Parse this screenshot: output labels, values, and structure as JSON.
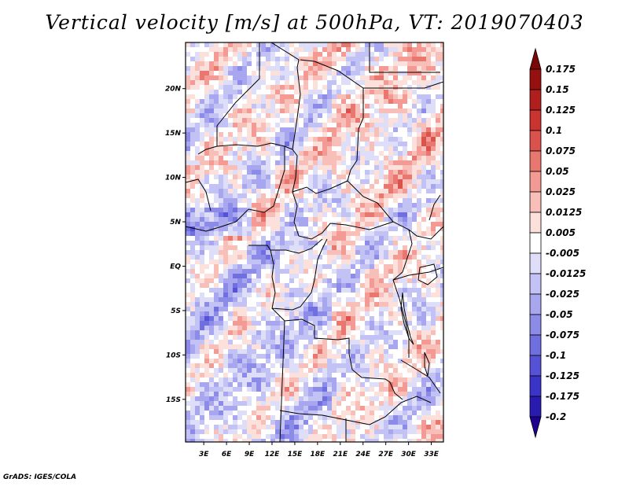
{
  "title": "Vertical velocity [m/s] at 500hPa, VT: 2019070403",
  "footer": "GrADS: IGES/COLA",
  "colors": {
    "levels": [
      "#20008f",
      "#2a1bb0",
      "#3a35c8",
      "#5552d6",
      "#706fe0",
      "#8c8be8",
      "#a7a6ef",
      "#c3c2f5",
      "#dedef9",
      "#ffffff",
      "#fce0dc",
      "#f8bfb9",
      "#f29a93",
      "#e8776f",
      "#da524c",
      "#c93330",
      "#b01e1e",
      "#961010",
      "#7a0808"
    ]
  },
  "chart_data": {
    "type": "heatmap",
    "title": "Vertical velocity [m/s] at 500hPa, VT: 2019070403",
    "variable": "Vertical velocity",
    "units": "m/s",
    "level": "500hPa",
    "valid_time": "2019070403",
    "x_axis": {
      "ticks": [
        "3E",
        "6E",
        "9E",
        "12E",
        "15E",
        "18E",
        "21E",
        "24E",
        "27E",
        "30E",
        "33E"
      ],
      "values": [
        3,
        6,
        9,
        12,
        15,
        18,
        21,
        24,
        27,
        30,
        33
      ],
      "range": [
        0.6,
        34.6
      ]
    },
    "y_axis": {
      "ticks": [
        "20N",
        "15N",
        "10N",
        "5N",
        "EQ",
        "5S",
        "10S",
        "15S"
      ],
      "values": [
        20,
        15,
        10,
        5,
        0,
        -5,
        -10,
        -15
      ],
      "range": [
        -19.8,
        25.2
      ]
    },
    "colorbar": {
      "labels": [
        "0.175",
        "0.15",
        "0.125",
        "0.1",
        "0.075",
        "0.05",
        "0.025",
        "0.0125",
        "0.005",
        "-0.005",
        "-0.0125",
        "-0.025",
        "-0.05",
        "-0.075",
        "-0.1",
        "-0.125",
        "-0.175",
        "-0.2"
      ],
      "values": [
        0.175,
        0.15,
        0.125,
        0.1,
        0.075,
        0.05,
        0.025,
        0.0125,
        0.005,
        -0.005,
        -0.0125,
        -0.025,
        -0.05,
        -0.075,
        -0.1,
        -0.125,
        -0.175,
        -0.2
      ]
    }
  }
}
